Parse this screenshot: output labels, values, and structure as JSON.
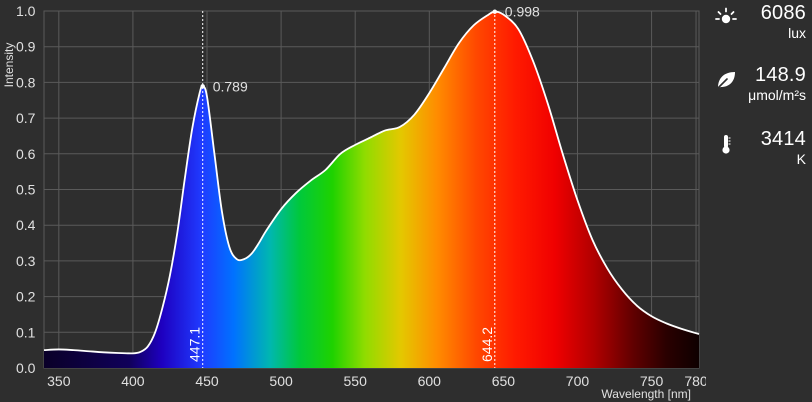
{
  "chart_data": {
    "type": "area",
    "xlabel": "Wavelength [nm]",
    "ylabel": "Intensity",
    "xlim": [
      340,
      782
    ],
    "ylim": [
      0,
      1.0
    ],
    "x_ticks": [
      350,
      400,
      450,
      500,
      550,
      600,
      650,
      700,
      750,
      780
    ],
    "y_ticks": [
      "0.0",
      "0.1",
      "0.2",
      "0.3",
      "0.4",
      "0.5",
      "0.6",
      "0.7",
      "0.8",
      "0.9",
      "1.0"
    ],
    "grid": true,
    "series": [
      {
        "points": [
          [
            340,
            0.05
          ],
          [
            350,
            0.052
          ],
          [
            360,
            0.05
          ],
          [
            370,
            0.047
          ],
          [
            380,
            0.044
          ],
          [
            390,
            0.042
          ],
          [
            400,
            0.041
          ],
          [
            405,
            0.045
          ],
          [
            410,
            0.06
          ],
          [
            415,
            0.1
          ],
          [
            420,
            0.17
          ],
          [
            425,
            0.26
          ],
          [
            430,
            0.38
          ],
          [
            435,
            0.53
          ],
          [
            440,
            0.67
          ],
          [
            445,
            0.77
          ],
          [
            447.1,
            0.789
          ],
          [
            450,
            0.76
          ],
          [
            455,
            0.6
          ],
          [
            460,
            0.44
          ],
          [
            465,
            0.34
          ],
          [
            470,
            0.305
          ],
          [
            475,
            0.305
          ],
          [
            480,
            0.32
          ],
          [
            485,
            0.35
          ],
          [
            490,
            0.385
          ],
          [
            500,
            0.445
          ],
          [
            510,
            0.49
          ],
          [
            520,
            0.525
          ],
          [
            530,
            0.555
          ],
          [
            540,
            0.6
          ],
          [
            550,
            0.625
          ],
          [
            560,
            0.645
          ],
          [
            570,
            0.665
          ],
          [
            580,
            0.675
          ],
          [
            590,
            0.71
          ],
          [
            600,
            0.77
          ],
          [
            610,
            0.84
          ],
          [
            620,
            0.91
          ],
          [
            630,
            0.96
          ],
          [
            640,
            0.99
          ],
          [
            644.2,
            0.998
          ],
          [
            650,
            0.99
          ],
          [
            660,
            0.95
          ],
          [
            670,
            0.86
          ],
          [
            680,
            0.74
          ],
          [
            690,
            0.6
          ],
          [
            700,
            0.47
          ],
          [
            710,
            0.36
          ],
          [
            720,
            0.28
          ],
          [
            730,
            0.22
          ],
          [
            740,
            0.175
          ],
          [
            750,
            0.145
          ],
          [
            760,
            0.125
          ],
          [
            770,
            0.11
          ],
          [
            782,
            0.095
          ]
        ]
      }
    ],
    "peaks": [
      {
        "wavelength": 447.1,
        "intensity": 0.789,
        "wavelength_label": "447.1",
        "intensity_label": "0.789"
      },
      {
        "wavelength": 644.2,
        "intensity": 0.998,
        "wavelength_label": "644.2",
        "intensity_label": "0.998"
      }
    ]
  },
  "metrics": [
    {
      "icon": "sun-icon",
      "value": "6086",
      "unit": "lux"
    },
    {
      "icon": "leaf-icon",
      "value": "148.9",
      "unit": "μmol/m²s"
    },
    {
      "icon": "thermometer-icon",
      "value": "3414",
      "unit": "K"
    }
  ],
  "colors": {
    "background": "#2e2e2e",
    "grid": "#5a5a5a",
    "curve": "#ffffff",
    "text": "#e0e0e0"
  }
}
